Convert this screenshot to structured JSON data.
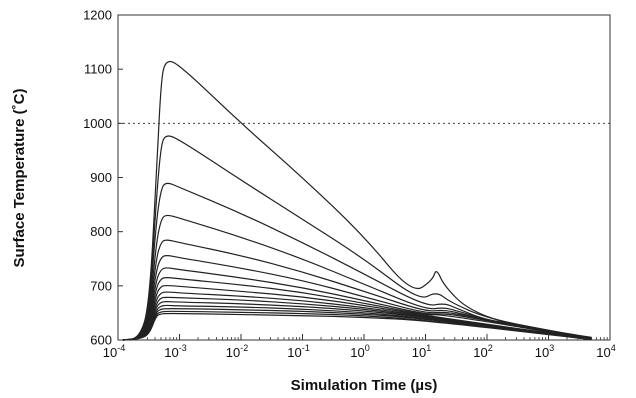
{
  "chart_data": {
    "type": "line",
    "title": "",
    "xlabel": "Simulation Time (µs)",
    "ylabel": "Surface Temperature (˚C)",
    "xscale": "log",
    "xlim": [
      0.0001,
      10000
    ],
    "ylim": [
      600,
      1200
    ],
    "x_ticks": [
      {
        "value": 0.0001,
        "base": "10",
        "exp": "-4"
      },
      {
        "value": 0.001,
        "base": "10",
        "exp": "-3"
      },
      {
        "value": 0.01,
        "base": "10",
        "exp": "-2"
      },
      {
        "value": 0.1,
        "base": "10",
        "exp": "-1"
      },
      {
        "value": 1,
        "base": "10",
        "exp": "0"
      },
      {
        "value": 10,
        "base": "10",
        "exp": "1"
      },
      {
        "value": 100,
        "base": "10",
        "exp": "2"
      },
      {
        "value": 1000,
        "base": "10",
        "exp": "3"
      },
      {
        "value": 10000,
        "base": "10",
        "exp": "4"
      }
    ],
    "y_ticks": [
      "600",
      "700",
      "800",
      "900",
      "1000",
      "1100",
      "1200"
    ],
    "reference_line": {
      "y": 1000,
      "style": "dotted"
    },
    "grid": false,
    "legend": "none",
    "line_color": "#222222",
    "series": [
      {
        "points": [
          [
            0.00012,
            600
          ],
          [
            0.00022,
            603
          ],
          [
            0.00032,
            660
          ],
          [
            0.00042,
            900
          ],
          [
            0.0005,
            1080
          ],
          [
            0.0006,
            1118
          ],
          [
            0.001,
            1108
          ],
          [
            0.01,
            1000
          ],
          [
            0.1,
            900
          ],
          [
            1,
            792
          ],
          [
            6,
            685
          ],
          [
            13,
            710
          ],
          [
            15,
            733
          ],
          [
            20,
            700
          ],
          [
            50,
            655
          ],
          [
            300,
            625
          ],
          [
            5000,
            605
          ]
        ]
      },
      {
        "points": [
          [
            0.00012,
            600
          ],
          [
            0.00022,
            603
          ],
          [
            0.00032,
            650
          ],
          [
            0.00042,
            860
          ],
          [
            0.0005,
            960
          ],
          [
            0.0006,
            980
          ],
          [
            0.001,
            970
          ],
          [
            0.01,
            895
          ],
          [
            0.1,
            823
          ],
          [
            1,
            750
          ],
          [
            8,
            672
          ],
          [
            15,
            690
          ],
          [
            25,
            670
          ],
          [
            100,
            640
          ],
          [
            1000,
            618
          ],
          [
            5000,
            604
          ]
        ]
      },
      {
        "points": [
          [
            0.00012,
            600
          ],
          [
            0.00022,
            603
          ],
          [
            0.00032,
            645
          ],
          [
            0.00042,
            820
          ],
          [
            0.0005,
            878
          ],
          [
            0.0006,
            892
          ],
          [
            0.001,
            882
          ],
          [
            0.01,
            834
          ],
          [
            0.1,
            780
          ],
          [
            1,
            722
          ],
          [
            10,
            662
          ],
          [
            20,
            668
          ],
          [
            30,
            660
          ],
          [
            100,
            636
          ],
          [
            1000,
            615
          ],
          [
            5000,
            604
          ]
        ]
      },
      {
        "points": [
          [
            0.00012,
            600
          ],
          [
            0.00022,
            603
          ],
          [
            0.00032,
            640
          ],
          [
            0.00042,
            780
          ],
          [
            0.0005,
            822
          ],
          [
            0.0006,
            832
          ],
          [
            0.001,
            825
          ],
          [
            0.01,
            790
          ],
          [
            0.1,
            750
          ],
          [
            1,
            703
          ],
          [
            10,
            656
          ],
          [
            20,
            660
          ],
          [
            30,
            655
          ],
          [
            200,
            628
          ],
          [
            5000,
            603
          ]
        ]
      },
      {
        "points": [
          [
            0.00012,
            600
          ],
          [
            0.00022,
            602
          ],
          [
            0.00032,
            636
          ],
          [
            0.00042,
            752
          ],
          [
            0.0005,
            780
          ],
          [
            0.0006,
            786
          ],
          [
            0.001,
            780
          ],
          [
            0.01,
            756
          ],
          [
            0.1,
            726
          ],
          [
            1,
            690
          ],
          [
            10,
            652
          ],
          [
            20,
            656
          ],
          [
            40,
            648
          ],
          [
            300,
            624
          ],
          [
            5000,
            603
          ]
        ]
      },
      {
        "points": [
          [
            0.00012,
            600
          ],
          [
            0.00022,
            602
          ],
          [
            0.00032,
            632
          ],
          [
            0.00042,
            730
          ],
          [
            0.0005,
            752
          ],
          [
            0.0006,
            757
          ],
          [
            0.001,
            752
          ],
          [
            0.01,
            733
          ],
          [
            0.1,
            710
          ],
          [
            1,
            680
          ],
          [
            10,
            649
          ],
          [
            20,
            652
          ],
          [
            50,
            644
          ],
          [
            5000,
            603
          ]
        ]
      },
      {
        "points": [
          [
            0.00012,
            600
          ],
          [
            0.00022,
            602
          ],
          [
            0.00032,
            628
          ],
          [
            0.00042,
            712
          ],
          [
            0.0005,
            730
          ],
          [
            0.0006,
            734
          ],
          [
            0.001,
            730
          ],
          [
            0.01,
            715
          ],
          [
            0.1,
            697
          ],
          [
            1,
            673
          ],
          [
            10,
            647
          ],
          [
            20,
            649
          ],
          [
            50,
            642
          ],
          [
            5000,
            602
          ]
        ]
      },
      {
        "points": [
          [
            0.00012,
            600
          ],
          [
            0.00022,
            602
          ],
          [
            0.00032,
            625
          ],
          [
            0.00042,
            698
          ],
          [
            0.0005,
            713
          ],
          [
            0.0006,
            716
          ],
          [
            0.001,
            713
          ],
          [
            0.01,
            702
          ],
          [
            0.1,
            688
          ],
          [
            1,
            668
          ],
          [
            10,
            646
          ],
          [
            20,
            647
          ],
          [
            5000,
            602
          ]
        ]
      },
      {
        "points": [
          [
            0.00012,
            600
          ],
          [
            0.00022,
            602
          ],
          [
            0.00032,
            622
          ],
          [
            0.00042,
            686
          ],
          [
            0.0005,
            699
          ],
          [
            0.0006,
            701
          ],
          [
            0.001,
            699
          ],
          [
            0.01,
            690
          ],
          [
            0.1,
            680
          ],
          [
            1,
            664
          ],
          [
            10,
            645
          ],
          [
            5000,
            602
          ]
        ]
      },
      {
        "points": [
          [
            0.00012,
            600
          ],
          [
            0.00022,
            602
          ],
          [
            0.00032,
            620
          ],
          [
            0.00042,
            676
          ],
          [
            0.0005,
            687
          ],
          [
            0.0006,
            689
          ],
          [
            0.001,
            687
          ],
          [
            0.01,
            681
          ],
          [
            0.1,
            673
          ],
          [
            1,
            660
          ],
          [
            10,
            644
          ],
          [
            5000,
            602
          ]
        ]
      },
      {
        "points": [
          [
            0.00012,
            600
          ],
          [
            0.00022,
            602
          ],
          [
            0.00032,
            618
          ],
          [
            0.00042,
            668
          ],
          [
            0.0005,
            678
          ],
          [
            0.0006,
            679
          ],
          [
            0.001,
            678
          ],
          [
            0.01,
            674
          ],
          [
            0.1,
            667
          ],
          [
            1,
            657
          ],
          [
            10,
            643
          ],
          [
            5000,
            601
          ]
        ]
      },
      {
        "points": [
          [
            0.00012,
            600
          ],
          [
            0.00022,
            602
          ],
          [
            0.00032,
            616
          ],
          [
            0.00042,
            662
          ],
          [
            0.0005,
            670
          ],
          [
            0.0006,
            671
          ],
          [
            0.001,
            670
          ],
          [
            0.01,
            667
          ],
          [
            0.1,
            662
          ],
          [
            1,
            654
          ],
          [
            10,
            642
          ],
          [
            5000,
            601
          ]
        ]
      },
      {
        "points": [
          [
            0.00012,
            600
          ],
          [
            0.00022,
            602
          ],
          [
            0.00032,
            614
          ],
          [
            0.00042,
            656
          ],
          [
            0.0005,
            663
          ],
          [
            0.0006,
            664
          ],
          [
            0.001,
            663
          ],
          [
            0.01,
            661
          ],
          [
            0.1,
            657
          ],
          [
            1,
            651
          ],
          [
            10,
            640
          ],
          [
            5000,
            601
          ]
        ]
      },
      {
        "points": [
          [
            0.00012,
            600
          ],
          [
            0.00022,
            602
          ],
          [
            0.00032,
            612
          ],
          [
            0.00042,
            652
          ],
          [
            0.0005,
            657
          ],
          [
            0.0006,
            658
          ],
          [
            0.001,
            658
          ],
          [
            0.01,
            656
          ],
          [
            0.1,
            653
          ],
          [
            1,
            648
          ],
          [
            10,
            639
          ],
          [
            5000,
            601
          ]
        ]
      },
      {
        "points": [
          [
            0.00012,
            600
          ],
          [
            0.00022,
            602
          ],
          [
            0.00032,
            611
          ],
          [
            0.00042,
            648
          ],
          [
            0.0005,
            652
          ],
          [
            0.0006,
            653
          ],
          [
            0.001,
            653
          ],
          [
            0.01,
            651
          ],
          [
            0.1,
            649
          ],
          [
            1,
            645
          ],
          [
            10,
            637
          ],
          [
            5000,
            601
          ]
        ]
      },
      {
        "points": [
          [
            0.00012,
            600
          ],
          [
            0.00022,
            602
          ],
          [
            0.00032,
            610
          ],
          [
            0.00042,
            645
          ],
          [
            0.0005,
            648
          ],
          [
            0.0006,
            649
          ],
          [
            0.001,
            649
          ],
          [
            0.01,
            647
          ],
          [
            0.1,
            645
          ],
          [
            1,
            642
          ],
          [
            10,
            636
          ],
          [
            5000,
            601
          ]
        ]
      }
    ]
  }
}
